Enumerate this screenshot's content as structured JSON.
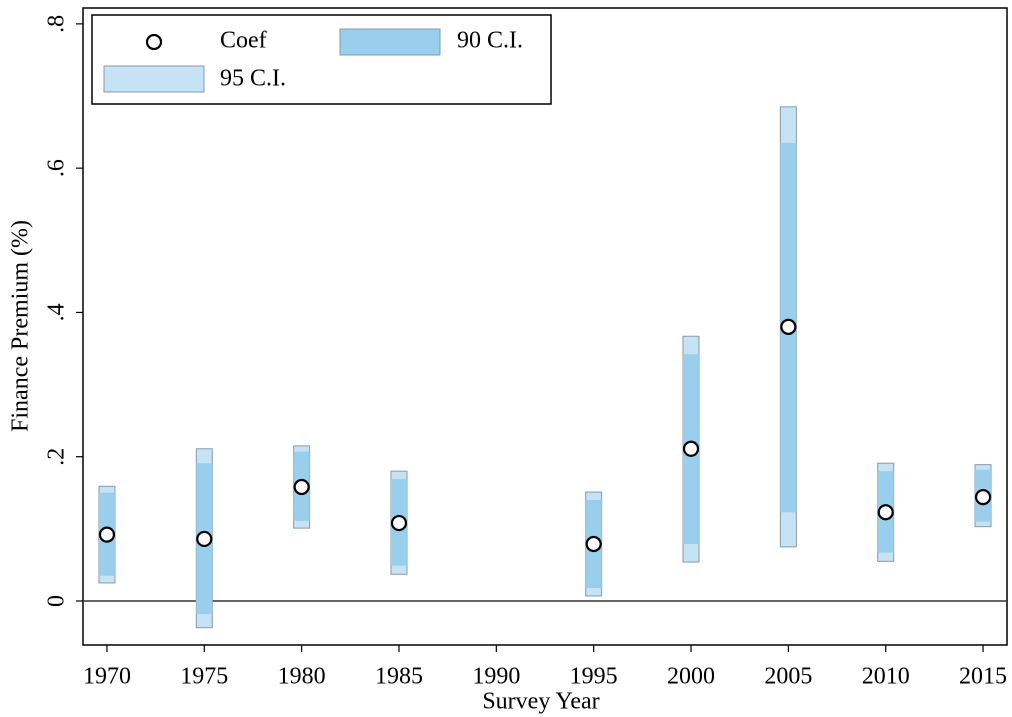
{
  "chart_data": {
    "type": "interval",
    "xlabel": "Survey Year",
    "ylabel": "Finance Premium (%)",
    "x": [
      1970,
      1975,
      1980,
      1985,
      1995,
      2000,
      2005,
      2010,
      2015
    ],
    "series": [
      {
        "name": "95 C.I.",
        "color": "#c6e2f5",
        "low": [
          0.025,
          -0.037,
          0.101,
          0.037,
          0.007,
          0.054,
          0.075,
          0.055,
          0.103
        ],
        "high": [
          0.159,
          0.211,
          0.215,
          0.18,
          0.151,
          0.367,
          0.685,
          0.191,
          0.189
        ]
      },
      {
        "name": "90 C.I.",
        "color": "#99cfec",
        "low": [
          0.035,
          -0.018,
          0.111,
          0.049,
          0.018,
          0.079,
          0.123,
          0.067,
          0.11
        ],
        "high": [
          0.15,
          0.191,
          0.207,
          0.169,
          0.14,
          0.342,
          0.635,
          0.18,
          0.182
        ]
      },
      {
        "name": "Coef",
        "color": "#ffffff",
        "values": [
          0.092,
          0.086,
          0.158,
          0.108,
          0.079,
          0.211,
          0.38,
          0.123,
          0.144
        ]
      }
    ],
    "xlim": [
      1968.77,
      2016.23
    ],
    "xticks": [
      1970,
      1975,
      1980,
      1985,
      1990,
      1995,
      2000,
      2005,
      2010,
      2015
    ],
    "ylim": [
      -0.061,
      0.822
    ],
    "yticks": [
      0,
      {
        "value": 0.2,
        "label": ".2"
      },
      {
        "value": 0.4,
        "label": ".4"
      },
      {
        "value": 0.6,
        "label": ".6"
      },
      {
        "value": 0.8,
        "label": ".8"
      }
    ],
    "reference_line": 0,
    "legend": "top-left"
  }
}
